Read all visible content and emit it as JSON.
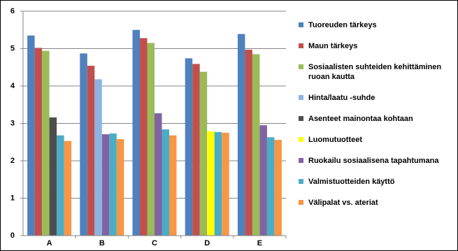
{
  "chart_data": {
    "type": "bar",
    "categories": [
      "A",
      "B",
      "C",
      "D",
      "E"
    ],
    "series": [
      {
        "name": "Tuoreuden tärkeys",
        "color": "#4f81bd",
        "values": [
          5.35,
          4.87,
          5.5,
          4.74,
          5.39
        ]
      },
      {
        "name": "Maun tärkeys",
        "color": "#c0504d",
        "values": [
          5.02,
          4.54,
          5.28,
          4.59,
          4.97
        ]
      },
      {
        "name": "Sosiaalisten suhteiden kehittäminen ruoan kautta",
        "color": "#9bbb59",
        "values": [
          4.94,
          null,
          5.15,
          4.38,
          4.85
        ]
      },
      {
        "name": "Hinta/laatu -suhde",
        "color": "#8db3e2",
        "values": [
          null,
          4.18,
          null,
          null,
          null
        ]
      },
      {
        "name": "Asenteet mainontaa kohtaan",
        "color": "#4d4d4d",
        "values": [
          3.16,
          null,
          null,
          null,
          null
        ]
      },
      {
        "name": "Luomutuotteet",
        "color": "#ffff00",
        "values": [
          null,
          null,
          null,
          2.79,
          null
        ]
      },
      {
        "name": "Ruokailu sosiaalisena tapahtumana",
        "color": "#8064a2",
        "values": [
          null,
          2.71,
          3.27,
          null,
          2.95
        ]
      },
      {
        "name": "Valmistuotteiden käyttö",
        "color": "#4bacc6",
        "values": [
          2.68,
          2.73,
          2.84,
          2.77,
          2.63
        ]
      },
      {
        "name": "Välipalat vs. ateriat",
        "color": "#f79646",
        "values": [
          2.53,
          2.58,
          2.68,
          2.75,
          2.56
        ]
      }
    ],
    "ylim": [
      0,
      6
    ],
    "yticks": [
      0,
      1,
      2,
      3,
      4,
      5,
      6
    ],
    "grid": true
  }
}
